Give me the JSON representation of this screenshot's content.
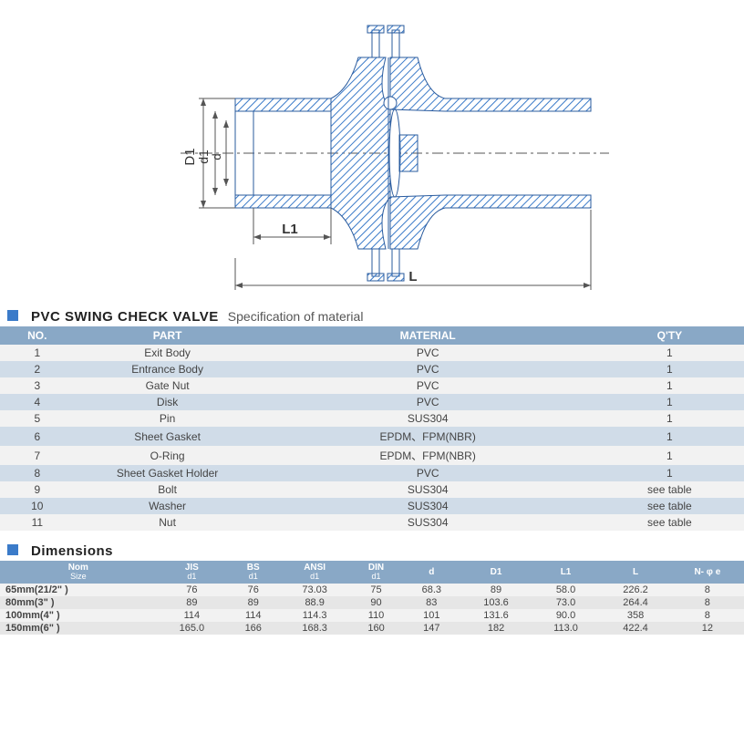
{
  "diagram": {
    "labels": {
      "D1": "D1",
      "d1": "d1",
      "d": "d",
      "L1": "L1",
      "L": "L"
    },
    "stroke": "#2a5b9e",
    "fill_hatch": "#3b7bc9",
    "dimension_color": "#555555"
  },
  "spec_section": {
    "title": "PVC SWING CHECK VALVE",
    "subtitle": "Specification of material",
    "header_bg": "#89a8c6",
    "row_odd_bg": "#f2f2f2",
    "row_even_bg": "#d0dce8",
    "columns": [
      "NO.",
      "PART",
      "MATERIAL",
      "Q'TY"
    ],
    "rows": [
      {
        "no": "1",
        "part": "Exit  Body",
        "material": "PVC",
        "qty": "1"
      },
      {
        "no": "2",
        "part": "Entrance  Body",
        "material": "PVC",
        "qty": "1"
      },
      {
        "no": "3",
        "part": "Gate  Nut",
        "material": "PVC",
        "qty": "1"
      },
      {
        "no": "4",
        "part": "Disk",
        "material": "PVC",
        "qty": "1"
      },
      {
        "no": "5",
        "part": "Pin",
        "material": "SUS304",
        "qty": "1"
      },
      {
        "no": "6",
        "part": "Sheet  Gasket",
        "material": "EPDM、FPM(NBR)",
        "qty": "1"
      },
      {
        "no": "7",
        "part": "O-Ring",
        "material": "EPDM、FPM(NBR)",
        "qty": "1"
      },
      {
        "no": "8",
        "part": "Sheet Gasket Holder",
        "material": "PVC",
        "qty": "1"
      },
      {
        "no": "9",
        "part": "Bolt",
        "material": "SUS304",
        "qty": "see table"
      },
      {
        "no": "10",
        "part": "Washer",
        "material": "SUS304",
        "qty": "see table"
      },
      {
        "no": "11",
        "part": "Nut",
        "material": "SUS304",
        "qty": "see table"
      }
    ]
  },
  "dims_section": {
    "title": "Dimensions",
    "header_bg": "#89a8c6",
    "columns": [
      {
        "label": "Nom",
        "sub": "Size"
      },
      {
        "label": "JIS",
        "sub": "d1"
      },
      {
        "label": "BS",
        "sub": "d1"
      },
      {
        "label": "ANSI",
        "sub": "d1"
      },
      {
        "label": "DIN",
        "sub": "d1"
      },
      {
        "label": "d",
        "sub": ""
      },
      {
        "label": "D1",
        "sub": ""
      },
      {
        "label": "L1",
        "sub": ""
      },
      {
        "label": "L",
        "sub": ""
      },
      {
        "label": "N- φ e",
        "sub": ""
      }
    ],
    "rows": [
      {
        "size": "65mm(21/2\" )",
        "vals": [
          "76",
          "76",
          "73.03",
          "75",
          "68.3",
          "89",
          "58.0",
          "226.2",
          "8"
        ]
      },
      {
        "size": "80mm(3\" )",
        "vals": [
          "89",
          "89",
          "88.9",
          "90",
          "83",
          "103.6",
          "73.0",
          "264.4",
          "8"
        ]
      },
      {
        "size": "100mm(4\" )",
        "vals": [
          "114",
          "114",
          "114.3",
          "110",
          "101",
          "131.6",
          "90.0",
          "358",
          "8"
        ]
      },
      {
        "size": "150mm(6\" )",
        "vals": [
          "165.0",
          "166",
          "168.3",
          "160",
          "147",
          "182",
          "113.0",
          "422.4",
          "12"
        ]
      }
    ]
  }
}
